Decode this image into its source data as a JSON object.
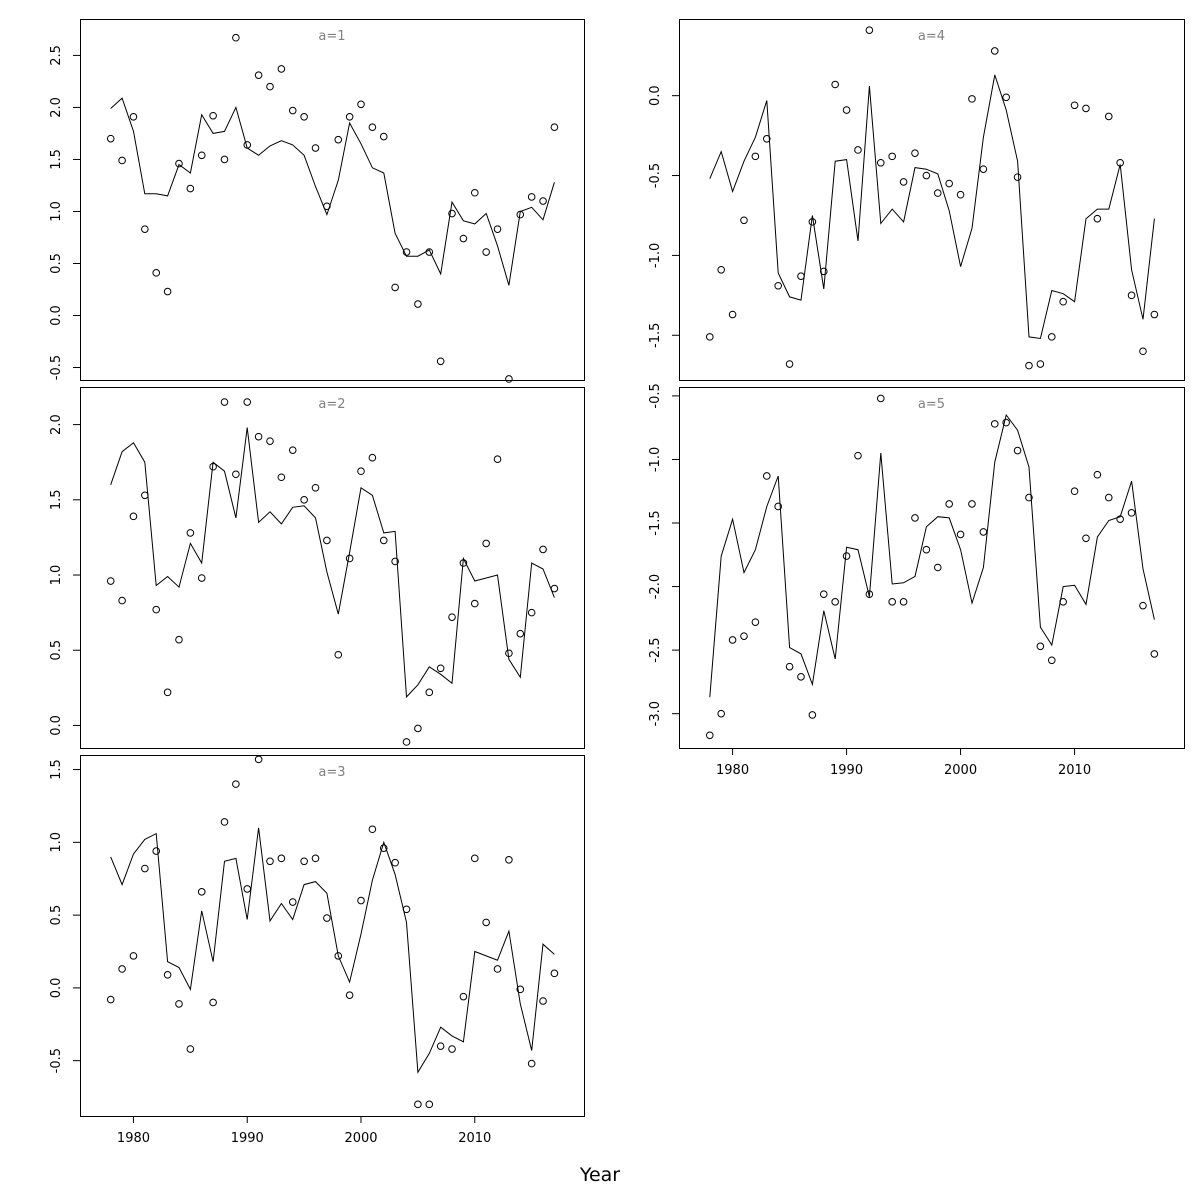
{
  "chart_data": {
    "type": "scatter",
    "xlabel": "Year",
    "x": [
      1978,
      1979,
      1980,
      1981,
      1982,
      1983,
      1984,
      1985,
      1986,
      1987,
      1988,
      1989,
      1990,
      1991,
      1992,
      1993,
      1994,
      1995,
      1996,
      1997,
      1998,
      1999,
      2000,
      2001,
      2002,
      2003,
      2004,
      2005,
      2006,
      2007,
      2008,
      2009,
      2010,
      2011,
      2012,
      2013,
      2014,
      2015,
      2016,
      2017
    ],
    "xlim": [
      1975.3,
      2019.6
    ],
    "xticks": [
      "1980",
      "1990",
      "2000",
      "2010"
    ],
    "panels": [
      {
        "title": "a=1",
        "ylim": [
          -0.62,
          2.85
        ],
        "yticks": [
          "-0.5",
          "0.0",
          "0.5",
          "1.0",
          "1.5",
          "2.0",
          "2.5"
        ],
        "observed": [
          1.7,
          1.49,
          1.91,
          0.83,
          0.41,
          0.23,
          1.46,
          1.22,
          1.54,
          1.92,
          1.5,
          2.67,
          1.64,
          2.31,
          2.2,
          2.37,
          1.97,
          1.91,
          1.61,
          1.05,
          1.69,
          1.91,
          2.03,
          1.81,
          1.72,
          0.27,
          0.61,
          0.11,
          0.61,
          -0.44,
          0.98,
          0.74,
          1.18,
          0.61,
          0.83,
          -0.61,
          0.97,
          1.14,
          1.1,
          1.81
        ],
        "fitted": [
          1.99,
          2.09,
          1.77,
          1.17,
          1.17,
          1.15,
          1.45,
          1.37,
          1.93,
          1.75,
          1.77,
          2.0,
          1.61,
          1.54,
          1.63,
          1.68,
          1.64,
          1.54,
          1.24,
          0.97,
          1.3,
          1.85,
          1.65,
          1.42,
          1.37,
          0.79,
          0.57,
          0.57,
          0.63,
          0.4,
          1.09,
          0.91,
          0.88,
          0.98,
          0.67,
          0.29,
          1.0,
          1.04,
          0.92,
          1.28
        ]
      },
      {
        "title": "a=2",
        "ylim": [
          -0.15,
          2.25
        ],
        "yticks": [
          "0.0",
          "0.5",
          "1.0",
          "1.5",
          "2.0"
        ],
        "observed": [
          0.96,
          0.83,
          1.39,
          1.53,
          0.77,
          0.22,
          0.57,
          1.28,
          0.98,
          1.72,
          2.15,
          1.67,
          2.15,
          1.92,
          1.89,
          1.65,
          1.83,
          1.5,
          1.58,
          1.23,
          0.47,
          1.11,
          1.69,
          1.78,
          1.23,
          1.09,
          -0.11,
          -0.02,
          0.22,
          0.38,
          0.72,
          1.08,
          0.81,
          1.21,
          1.77,
          0.48,
          0.61,
          0.75,
          1.17,
          0.91
        ],
        "fitted": [
          1.6,
          1.82,
          1.88,
          1.75,
          0.93,
          0.99,
          0.92,
          1.21,
          1.08,
          1.75,
          1.69,
          1.38,
          1.98,
          1.35,
          1.42,
          1.34,
          1.45,
          1.46,
          1.38,
          1.02,
          0.74,
          1.15,
          1.58,
          1.53,
          1.28,
          1.29,
          0.19,
          0.27,
          0.39,
          0.34,
          0.28,
          1.11,
          0.96,
          0.98,
          1.0,
          0.44,
          0.32,
          1.08,
          1.04,
          0.85
        ]
      },
      {
        "title": "a=3",
        "ylim": [
          -0.88,
          1.6
        ],
        "yticks": [
          "-0.5",
          "0.0",
          "0.5",
          "1.0",
          "1.5"
        ],
        "observed": [
          -0.08,
          0.13,
          0.22,
          0.82,
          0.94,
          0.09,
          -0.11,
          -0.42,
          0.66,
          -0.1,
          1.14,
          1.4,
          0.68,
          1.57,
          0.87,
          0.89,
          0.59,
          0.87,
          0.89,
          0.48,
          0.22,
          -0.05,
          0.6,
          1.09,
          0.96,
          0.86,
          0.54,
          -0.8,
          -0.8,
          -0.4,
          -0.42,
          -0.06,
          0.89,
          0.45,
          0.13,
          0.88,
          -0.01,
          -0.52,
          -0.09,
          0.1
        ],
        "fitted": [
          0.9,
          0.71,
          0.92,
          1.02,
          1.06,
          0.18,
          0.14,
          -0.01,
          0.53,
          0.18,
          0.87,
          0.89,
          0.47,
          1.1,
          0.46,
          0.58,
          0.47,
          0.71,
          0.73,
          0.65,
          0.22,
          0.04,
          0.37,
          0.74,
          1.0,
          0.78,
          0.45,
          -0.58,
          -0.45,
          -0.27,
          -0.33,
          -0.37,
          0.25,
          0.22,
          0.19,
          0.39,
          -0.11,
          -0.43,
          0.3,
          0.23
        ]
      },
      {
        "title": "a=4",
        "ylim": [
          -1.78,
          0.48
        ],
        "yticks": [
          "-1.5",
          "-1.0",
          "-0.5",
          "0.0"
        ],
        "observed": [
          -1.51,
          -1.09,
          -1.37,
          -0.78,
          -0.38,
          -0.27,
          -1.19,
          -1.68,
          -1.13,
          -0.79,
          -1.1,
          0.07,
          -0.09,
          -0.34,
          0.41,
          -0.42,
          -0.38,
          -0.54,
          -0.36,
          -0.5,
          -0.61,
          -0.55,
          -0.62,
          -0.02,
          -0.46,
          0.28,
          -0.01,
          -0.51,
          -1.69,
          -1.68,
          -1.51,
          -1.29,
          -0.06,
          -0.08,
          -0.77,
          -0.13,
          -0.42,
          -1.25,
          -1.6,
          -1.37
        ],
        "fitted": [
          -0.52,
          -0.35,
          -0.6,
          -0.41,
          -0.26,
          -0.03,
          -1.11,
          -1.26,
          -1.28,
          -0.75,
          -1.21,
          -0.41,
          -0.4,
          -0.91,
          0.06,
          -0.8,
          -0.71,
          -0.79,
          -0.45,
          -0.46,
          -0.49,
          -0.72,
          -1.07,
          -0.83,
          -0.26,
          0.13,
          -0.09,
          -0.41,
          -1.51,
          -1.52,
          -1.22,
          -1.24,
          -1.29,
          -0.77,
          -0.71,
          -0.71,
          -0.43,
          -1.09,
          -1.4,
          -0.77
        ]
      },
      {
        "title": "a=5",
        "ylim": [
          -3.27,
          -0.43
        ],
        "yticks": [
          "-3.0",
          "-2.5",
          "-2.0",
          "-1.5",
          "-1.0",
          "-0.5"
        ],
        "observed": [
          -3.17,
          -3.0,
          -2.42,
          -2.39,
          -2.28,
          -1.13,
          -1.37,
          -2.63,
          -2.71,
          -3.01,
          -2.06,
          -2.12,
          -1.76,
          -0.97,
          -2.06,
          -0.52,
          -2.12,
          -2.12,
          -1.46,
          -1.71,
          -1.85,
          -1.35,
          -1.59,
          -1.35,
          -1.57,
          -0.72,
          -0.71,
          -0.93,
          -1.3,
          -2.47,
          -2.58,
          -2.12,
          -1.25,
          -1.62,
          -1.12,
          -1.3,
          -1.47,
          -1.42,
          -2.15,
          -2.53
        ],
        "fitted": [
          -2.87,
          -1.76,
          -1.47,
          -1.89,
          -1.71,
          -1.37,
          -1.13,
          -2.48,
          -2.53,
          -2.77,
          -2.19,
          -2.57,
          -1.69,
          -1.71,
          -2.08,
          -0.95,
          -1.98,
          -1.97,
          -1.92,
          -1.53,
          -1.45,
          -1.46,
          -1.71,
          -2.13,
          -1.85,
          -1.02,
          -0.65,
          -0.77,
          -1.06,
          -2.32,
          -2.46,
          -2.0,
          -1.99,
          -2.14,
          -1.61,
          -1.48,
          -1.45,
          -1.17,
          -1.86,
          -2.26
        ]
      }
    ]
  }
}
